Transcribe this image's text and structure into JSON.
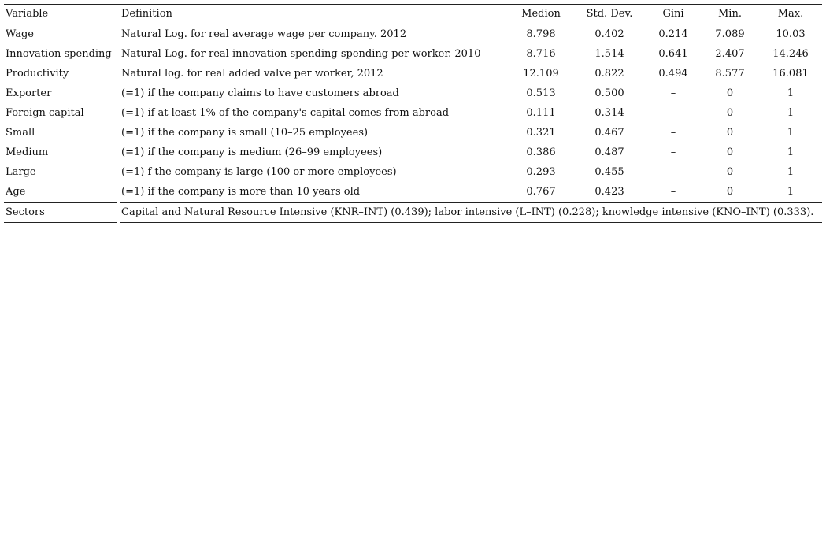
{
  "table": {
    "headers": {
      "variable": "Variable",
      "definition": "Definition",
      "median": "Medion",
      "std": "Std. Dev.",
      "gini": "Gini",
      "min": "Min.",
      "max": "Max."
    },
    "rows": [
      {
        "variable": "Wage",
        "definition": "Natural Log. for real average wage per company. 2012",
        "median": "8.798",
        "std": "0.402",
        "gini": "0.214",
        "min": "7.089",
        "max": "10.03"
      },
      {
        "variable": "Innovation spending",
        "definition": "Natural Log. for real innovation spending spending per worker. 2010",
        "median": "8.716",
        "std": "1.514",
        "gini": "0.641",
        "min": "2.407",
        "max": "14.246"
      },
      {
        "variable": "Productivity",
        "definition": "Natural log. for real added valve per worker, 2012",
        "median": "12.109",
        "std": "0.822",
        "gini": "0.494",
        "min": "8.577",
        "max": "16.081"
      },
      {
        "variable": "Exporter",
        "definition": "(=1) if the company claims to have customers abroad",
        "median": "0.513",
        "std": "0.500",
        "gini": "–",
        "min": "0",
        "max": "1"
      },
      {
        "variable": "Foreign capital",
        "definition": "(=1) if at least 1% of the company's capital comes from abroad",
        "median": "0.111",
        "std": "0.314",
        "gini": "–",
        "min": "0",
        "max": "1"
      },
      {
        "variable": "Small",
        "definition": "(=1) if the company is small (10–25 employees)",
        "median": "0.321",
        "std": "0.467",
        "gini": "–",
        "min": "0",
        "max": "1"
      },
      {
        "variable": "Medium",
        "definition": "(=1) if the company is medium (26–99 employees)",
        "median": "0.386",
        "std": "0.487",
        "gini": "–",
        "min": "0",
        "max": "1"
      },
      {
        "variable": "Large",
        "definition": "(=1) f the company is large (100 or more employees)",
        "median": "0.293",
        "std": "0.455",
        "gini": "–",
        "min": "0",
        "max": "1"
      },
      {
        "variable": "Age",
        "definition": "(=1) if the company is more than 10 years old",
        "median": "0.767",
        "std": "0.423",
        "gini": "–",
        "min": "0",
        "max": "1"
      }
    ],
    "sectors": {
      "variable": "Sectors",
      "definition": "Capital and Natural Resource Intensive (KNR–INT) (0.439); labor intensive (L–INT) (0.228); knowledge intensive (KNO–INT) (0.333)."
    }
  }
}
